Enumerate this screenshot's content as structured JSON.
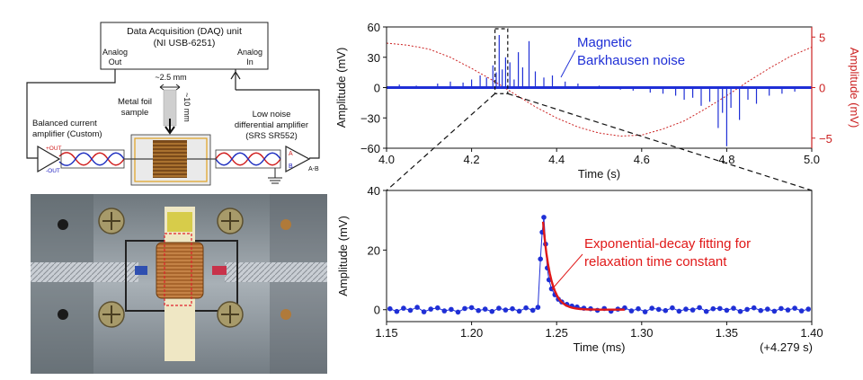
{
  "schematic": {
    "daq_title": "Data Acquisition (DAQ) unit",
    "daq_model": "(NI USB-6251)",
    "analog_out_1": "Analog",
    "analog_out_2": "Out",
    "analog_in_1": "Analog",
    "analog_in_2": "In",
    "width_dim": "~2.5 mm",
    "length_dim": "~10 mm",
    "sample_label_1": "Metal foil",
    "sample_label_2": "sample",
    "amp_left_1": "Balanced current",
    "amp_left_2": "amplifier (Custom)",
    "amp_right_1": "Low noise",
    "amp_right_2": "differential amplifier",
    "amp_right_3": "(SRS SR552)",
    "plus_out": "+OUT",
    "minus_out": "-OUT",
    "in_a": "A",
    "in_b": "B",
    "out_ab": "A-B"
  },
  "photo": {
    "colors": {
      "plate": "#9aa2a8",
      "coil": "#c07a3a",
      "tape": "#e6d38a",
      "highlight": "#e0202a"
    }
  },
  "chart_data": [
    {
      "type": "line",
      "id": "top",
      "xlabel": "Time (s)",
      "ylabel_left": "Amplitude (mV)",
      "ylabel_right": "Amplitude (mV)",
      "xlim": [
        4.0,
        5.0
      ],
      "ylim_left": [
        -60,
        60
      ],
      "ylim_right": [
        -6,
        6
      ],
      "x_ticks": [
        4.0,
        4.2,
        4.4,
        4.6,
        4.8,
        5.0
      ],
      "x_tick_labels": [
        "4.0",
        "4.2",
        "4.4",
        "4.6",
        "4.8",
        "5.0"
      ],
      "y_ticks_left": [
        -60,
        -30,
        0,
        30,
        60
      ],
      "y_tick_labels_left": [
        "−60",
        "−30",
        "0",
        "30",
        "60"
      ],
      "y_ticks_right": [
        -5,
        0,
        5
      ],
      "y_tick_labels_right": [
        "−5",
        "0",
        "5"
      ],
      "annotation_1": "Magnetic",
      "annotation_2": "Barkhausen noise",
      "colors": {
        "noise": "#1f2fd6",
        "drive": "#cc2222"
      },
      "series": [
        {
          "axis": "right",
          "style": "dotted",
          "x": [
            4.0,
            4.05,
            4.1,
            4.15,
            4.2,
            4.25,
            4.3,
            4.35,
            4.4,
            4.45,
            4.5,
            4.55,
            4.6,
            4.65,
            4.7,
            4.75,
            4.8,
            4.85,
            4.9,
            4.95,
            5.0
          ],
          "y": [
            4.4,
            4.2,
            3.8,
            3.0,
            1.9,
            0.7,
            -0.6,
            -1.9,
            -3.0,
            -3.9,
            -4.5,
            -4.8,
            -4.7,
            -4.1,
            -3.3,
            -2.1,
            -0.8,
            0.6,
            1.9,
            3.1,
            4.0
          ]
        },
        {
          "axis": "left",
          "style": "spikes",
          "x": [
            4.03,
            4.07,
            4.12,
            4.15,
            4.18,
            4.2,
            4.22,
            4.235,
            4.25,
            4.258,
            4.265,
            4.272,
            4.28,
            4.29,
            4.3,
            4.31,
            4.32,
            4.335,
            4.35,
            4.37,
            4.39,
            4.42,
            4.45,
            4.5,
            4.55,
            4.58,
            4.62,
            4.65,
            4.68,
            4.7,
            4.72,
            4.74,
            4.76,
            4.78,
            4.79,
            4.8,
            4.81,
            4.83,
            4.85,
            4.87,
            4.9,
            4.93,
            4.96
          ],
          "y": [
            3,
            2,
            4,
            6,
            5,
            8,
            12,
            10,
            22,
            15,
            52,
            18,
            30,
            25,
            8,
            35,
            20,
            46,
            16,
            10,
            12,
            6,
            4,
            2,
            -2,
            -3,
            -5,
            -6,
            -8,
            -12,
            -10,
            -18,
            -14,
            -40,
            -25,
            -58,
            -20,
            -32,
            -12,
            -16,
            -8,
            -6,
            -4
          ]
        }
      ]
    },
    {
      "type": "scatter",
      "id": "bottom",
      "xlabel": "Time (ms)",
      "ylabel": "Amplitude (mV)",
      "offset_note": "(+4.279 s)",
      "xlim": [
        1.15,
        1.4
      ],
      "ylim": [
        -4,
        40
      ],
      "x_ticks": [
        1.15,
        1.2,
        1.25,
        1.3,
        1.35,
        1.4
      ],
      "x_tick_labels": [
        "1.15",
        "1.20",
        "1.25",
        "1.30",
        "1.35",
        "1.40"
      ],
      "y_ticks": [
        0,
        20,
        40
      ],
      "y_tick_labels": [
        "0",
        "20",
        "40"
      ],
      "annotation_1": "Exponential-decay fitting for",
      "annotation_2": "relaxation time constant",
      "colors": {
        "data": "#1f2fd6",
        "fit": "#e01818"
      },
      "fit_start": 1.242,
      "fit_end": 1.29,
      "fit_amplitude": 29.5,
      "fit_tau_ms": 0.0045,
      "series": [
        {
          "name": "",
          "x": [
            1.152,
            1.156,
            1.16,
            1.164,
            1.168,
            1.172,
            1.176,
            1.18,
            1.184,
            1.188,
            1.192,
            1.196,
            1.2,
            1.204,
            1.208,
            1.212,
            1.216,
            1.22,
            1.224,
            1.228,
            1.232,
            1.236,
            1.239,
            1.2405,
            1.2415,
            1.2425,
            1.2435,
            1.2445,
            1.2455,
            1.247,
            1.249,
            1.251,
            1.253,
            1.256,
            1.259,
            1.262,
            1.266,
            1.27,
            1.274,
            1.278,
            1.282,
            1.286,
            1.29,
            1.294,
            1.298,
            1.302,
            1.306,
            1.31,
            1.314,
            1.318,
            1.322,
            1.326,
            1.33,
            1.334,
            1.338,
            1.342,
            1.346,
            1.35,
            1.354,
            1.358,
            1.362,
            1.366,
            1.37,
            1.374,
            1.378,
            1.382,
            1.386,
            1.39,
            1.394,
            1.398
          ],
          "y": [
            0.3,
            -0.6,
            0.5,
            -0.2,
            0.8,
            -0.7,
            0.2,
            0.6,
            -0.4,
            0.1,
            -0.8,
            0.4,
            0.7,
            -0.3,
            0.2,
            -0.6,
            0.5,
            -0.1,
            0.3,
            -0.5,
            0.6,
            -0.2,
            0.8,
            17.0,
            26.0,
            31.0,
            22.0,
            14.0,
            10.0,
            7.0,
            5.0,
            3.5,
            2.6,
            1.8,
            1.2,
            0.9,
            0.5,
            0.3,
            -0.2,
            0.4,
            -0.5,
            0.2,
            0.6,
            -0.4,
            0.3,
            -0.7,
            0.5,
            0.1,
            -0.3,
            0.6,
            -0.5,
            0.2,
            -0.1,
            0.7,
            -0.6,
            0.3,
            0.4,
            -0.2,
            0.5,
            -0.6,
            0.1,
            0.6,
            -0.3,
            0.2,
            -0.5,
            0.4,
            -0.1,
            0.5,
            -0.4,
            0.2
          ]
        }
      ]
    }
  ]
}
